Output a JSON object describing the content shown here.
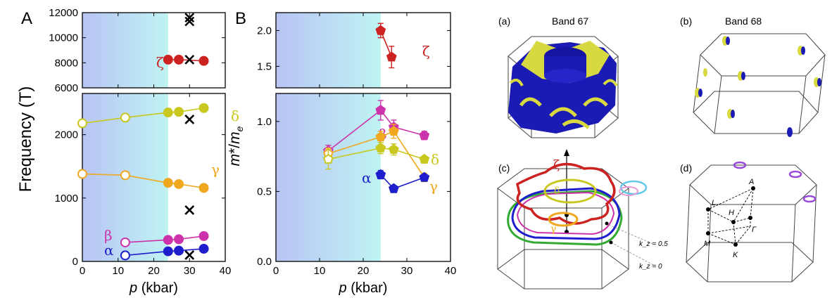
{
  "panel_labels": {
    "A": "A",
    "B": "B"
  },
  "fermi_labels": {
    "a": "(a)",
    "b": "(b)",
    "c": "(c)",
    "d": "(d)"
  },
  "band_titles": {
    "a": "Band 67",
    "b": "Band 68"
  },
  "c_annotations": {
    "zeta": "ζ",
    "delta": "δ",
    "gamma": "γ",
    "kz05": "k_z = 0.5",
    "kz0": "k_z = 0"
  },
  "d_points": {
    "A": "A",
    "L": "L",
    "H": "H",
    "Gamma": "Γ",
    "M": "M",
    "K": "K"
  },
  "colors": {
    "zeta": "#cc2222",
    "delta": "#c8c81e",
    "gamma": "#f0a81e",
    "beta": "#cc33aa",
    "alpha": "#1e1ecc",
    "cross": "#000000",
    "band_blue": "#1a1ab4",
    "band_yellow": "#d8d840",
    "shade_left": "#b8c4f4",
    "shade_right": "#bff3f3",
    "fs_green": "#33aa33",
    "fs_purple": "#9a4ad8",
    "fs_cyan": "#66c8e8"
  },
  "chart_data": [
    {
      "id": "A-top",
      "type": "scatter",
      "xlim": [
        0,
        40
      ],
      "ylim": [
        6000,
        12000
      ],
      "ylabel": "Frequency (T)",
      "yticks": [
        "6000",
        "8000",
        "10000",
        "12000"
      ],
      "shade_x": [
        0,
        24
      ],
      "series": [
        {
          "name": "ζ",
          "x": [
            24,
            27,
            34
          ],
          "y": [
            8250,
            8250,
            8150
          ],
          "filled": [
            true,
            true,
            true
          ]
        },
        {
          "x": [
            30,
            30,
            30
          ],
          "y": [
            11300,
            11600,
            8250
          ],
          "marker": "cross"
        }
      ]
    },
    {
      "id": "A-bottom",
      "type": "scatter",
      "xlim": [
        0,
        40
      ],
      "ylim": [
        0,
        2650
      ],
      "xlabel": "p (kbar)",
      "xticks": [
        "0",
        "10",
        "20",
        "30",
        "40"
      ],
      "yticks": [
        "0",
        "1000",
        "2000"
      ],
      "shade_x": [
        0,
        24
      ],
      "series": [
        {
          "name": "δ",
          "x": [
            0,
            12,
            24,
            27,
            34
          ],
          "y": [
            2180,
            2270,
            2350,
            2360,
            2420
          ],
          "filled": [
            false,
            false,
            true,
            true,
            true
          ]
        },
        {
          "name": "γ",
          "x": [
            0,
            12,
            24,
            27,
            34
          ],
          "y": [
            1380,
            1360,
            1240,
            1220,
            1160
          ],
          "filled": [
            false,
            false,
            true,
            true,
            true
          ]
        },
        {
          "name": "β",
          "x": [
            12,
            24,
            27,
            34
          ],
          "y": [
            300,
            340,
            350,
            400
          ],
          "filled": [
            false,
            true,
            true,
            true
          ]
        },
        {
          "name": "α",
          "x": [
            12,
            24,
            27,
            34
          ],
          "y": [
            95,
            160,
            170,
            200
          ],
          "filled": [
            false,
            true,
            true,
            true
          ]
        },
        {
          "x": [
            30,
            30,
            30
          ],
          "y": [
            2240,
            810,
            100
          ],
          "marker": "cross"
        }
      ]
    },
    {
      "id": "B-top",
      "type": "scatter",
      "xlim": [
        0,
        40
      ],
      "ylim": [
        1.2,
        2.25
      ],
      "yticks": [
        "1.5",
        "2.0"
      ],
      "shade_x": [
        0,
        24
      ],
      "series": [
        {
          "name": "ζ",
          "x": [
            24,
            26.5
          ],
          "y": [
            2.0,
            1.63
          ],
          "err": [
            0.1,
            0.15
          ],
          "filled": [
            true,
            true
          ],
          "marker": "pentagon"
        }
      ]
    },
    {
      "id": "B-bottom",
      "type": "scatter",
      "xlim": [
        0,
        40
      ],
      "ylim": [
        0,
        1.2
      ],
      "xlabel": "p (kbar)",
      "xticks": [
        "0",
        "10",
        "20",
        "30",
        "40"
      ],
      "ylabel": "m*/m_e",
      "yticks": [
        "0.0",
        "0.5",
        "1.0"
      ],
      "shade_x": [
        0,
        24
      ],
      "series": [
        {
          "name": "β",
          "x": [
            12,
            24,
            27,
            34
          ],
          "y": [
            0.79,
            1.08,
            0.96,
            0.9
          ],
          "err": [
            0.04,
            0.07,
            0.05,
            0.03
          ],
          "filled": [
            false,
            true,
            true,
            true
          ],
          "marker": "pentagon"
        },
        {
          "name": "γ",
          "x": [
            12,
            24,
            27,
            34
          ],
          "y": [
            0.77,
            0.89,
            0.93,
            0.6
          ],
          "err": [
            0.04,
            0.04,
            0.05,
            0.03
          ],
          "filled": [
            false,
            true,
            true,
            true
          ],
          "marker": "pentagon"
        },
        {
          "name": "δ",
          "x": [
            12,
            24,
            27,
            34
          ],
          "y": [
            0.73,
            0.81,
            0.8,
            0.73
          ],
          "err": [
            0.07,
            0.04,
            0.04,
            0.02
          ],
          "filled": [
            false,
            true,
            true,
            true
          ],
          "marker": "pentagon"
        },
        {
          "name": "α",
          "x": [
            24,
            27,
            34
          ],
          "y": [
            0.62,
            0.52,
            0.6
          ],
          "err": [
            0.03,
            0.02,
            0.02
          ],
          "filled": [
            true,
            true,
            true
          ],
          "marker": "pentagon"
        }
      ]
    }
  ]
}
